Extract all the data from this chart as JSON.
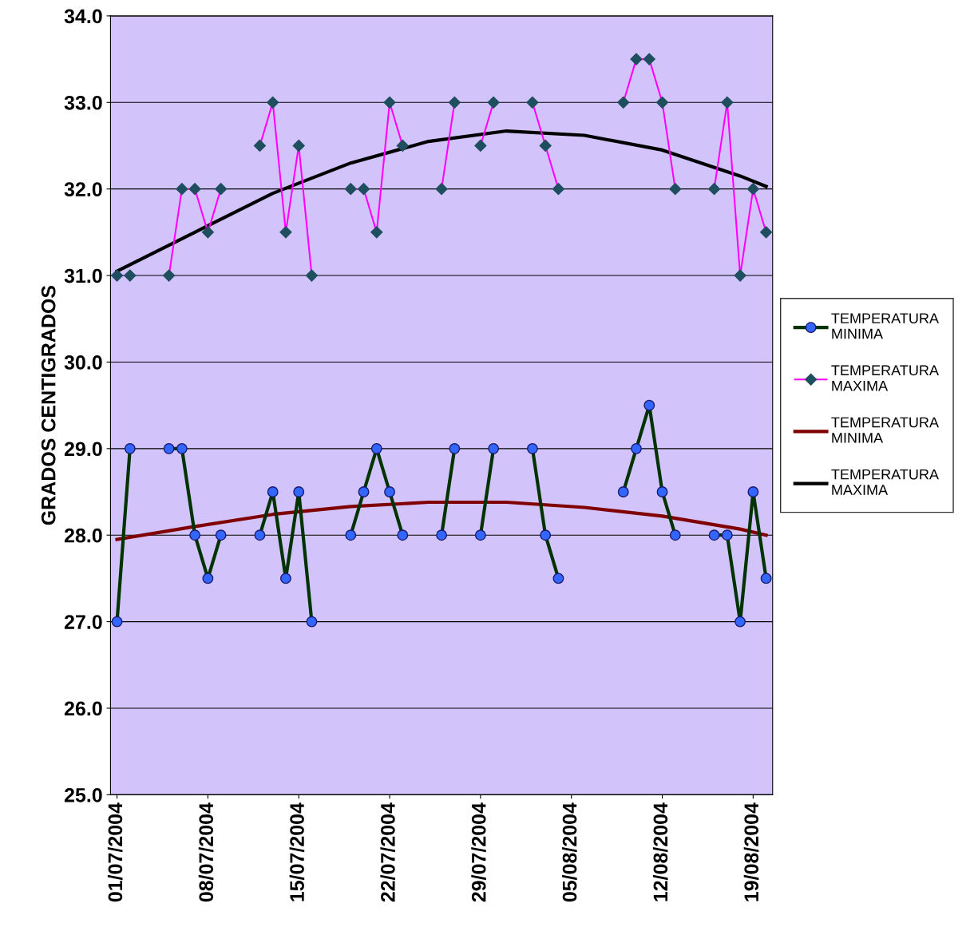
{
  "chart_data": {
    "type": "line",
    "ylabel": "GRADOS CENTIGRADOS",
    "x": [
      "2004-07-01",
      "2004-07-02",
      "2004-07-03",
      "2004-07-04",
      "2004-07-05",
      "2004-07-06",
      "2004-07-07",
      "2004-07-08",
      "2004-07-09",
      "2004-07-10",
      "2004-07-11",
      "2004-07-12",
      "2004-07-13",
      "2004-07-14",
      "2004-07-15",
      "2004-07-16",
      "2004-07-17",
      "2004-07-18",
      "2004-07-19",
      "2004-07-20",
      "2004-07-21",
      "2004-07-22",
      "2004-07-23",
      "2004-07-24",
      "2004-07-25",
      "2004-07-26",
      "2004-07-27",
      "2004-07-28",
      "2004-07-29",
      "2004-07-30",
      "2004-07-31",
      "2004-08-01",
      "2004-08-02",
      "2004-08-03",
      "2004-08-04",
      "2004-08-05",
      "2004-08-06",
      "2004-08-07",
      "2004-08-08",
      "2004-08-09",
      "2004-08-10",
      "2004-08-11",
      "2004-08-12",
      "2004-08-13",
      "2004-08-14",
      "2004-08-15",
      "2004-08-16",
      "2004-08-17",
      "2004-08-18",
      "2004-08-19",
      "2004-08-20"
    ],
    "series": [
      {
        "name": "TEMPERATURA MINIMA",
        "color": "#003300",
        "marker": "circle",
        "values": [
          27,
          29,
          null,
          null,
          29,
          29,
          28,
          27.5,
          28,
          null,
          null,
          28,
          28.5,
          27.5,
          28.5,
          27,
          null,
          null,
          28,
          28.5,
          29,
          28.5,
          28,
          null,
          null,
          28,
          29,
          null,
          28,
          29,
          null,
          null,
          29,
          28,
          27.5,
          null,
          null,
          null,
          null,
          28.5,
          29,
          29.5,
          28.5,
          28,
          null,
          null,
          28,
          28,
          27,
          28.5,
          27.5
        ]
      },
      {
        "name": "TEMPERATURA MAXIMA",
        "color": "#ff00ff",
        "marker": "diamond",
        "values": [
          31,
          31,
          null,
          null,
          31,
          32,
          32,
          31.5,
          32,
          null,
          null,
          32.5,
          33,
          31.5,
          32.5,
          31,
          null,
          null,
          32,
          32,
          31.5,
          33,
          32.5,
          null,
          null,
          32,
          33,
          null,
          32.5,
          33,
          null,
          null,
          33,
          32.5,
          32,
          null,
          null,
          null,
          null,
          33,
          33.5,
          33.5,
          33,
          32,
          null,
          null,
          32,
          33,
          31,
          32,
          31.5
        ]
      },
      {
        "name": "TEMPERATURA MINIMA",
        "color": "#800000",
        "marker": "none",
        "x": [
          "2004-07-01",
          "2004-07-07",
          "2004-07-13",
          "2004-07-19",
          "2004-07-25",
          "2004-07-31",
          "2004-08-06",
          "2004-08-12",
          "2004-08-18",
          "2004-08-20"
        ],
        "values": [
          27.95,
          28.1,
          28.24,
          28.33,
          28.38,
          28.38,
          28.32,
          28.22,
          28.07,
          28.0
        ]
      },
      {
        "name": "TEMPERATURA MAXIMA",
        "color": "#000000",
        "marker": "none",
        "x": [
          "2004-07-01",
          "2004-07-07",
          "2004-07-13",
          "2004-07-19",
          "2004-07-25",
          "2004-07-31",
          "2004-08-06",
          "2004-08-12",
          "2004-08-18",
          "2004-08-20"
        ],
        "values": [
          31.05,
          31.5,
          31.95,
          32.3,
          32.55,
          32.67,
          32.62,
          32.45,
          32.15,
          32.03
        ]
      }
    ],
    "xlim": [
      "2004-06-30T12:00",
      "2004-08-20T12:00"
    ],
    "xticks": [
      {
        "value": "2004-07-01",
        "label": "01/07/2004"
      },
      {
        "value": "2004-07-08",
        "label": "08/07/2004"
      },
      {
        "value": "2004-07-15",
        "label": "15/07/2004"
      },
      {
        "value": "2004-07-22",
        "label": "22/07/2004"
      },
      {
        "value": "2004-07-29",
        "label": "29/07/2004"
      },
      {
        "value": "2004-08-05",
        "label": "05/08/2004"
      },
      {
        "value": "2004-08-12",
        "label": "12/08/2004"
      },
      {
        "value": "2004-08-19",
        "label": "19/08/2004"
      }
    ],
    "ylim": [
      25,
      34
    ],
    "yticks": [
      {
        "value": 25,
        "label": "25.0"
      },
      {
        "value": 26,
        "label": "26.0"
      },
      {
        "value": 27,
        "label": "27.0"
      },
      {
        "value": 28,
        "label": "28.0"
      },
      {
        "value": 29,
        "label": "29.0"
      },
      {
        "value": 30,
        "label": "30.0"
      },
      {
        "value": 31,
        "label": "31.0"
      },
      {
        "value": 32,
        "label": "32.0"
      },
      {
        "value": 33,
        "label": "33.0"
      },
      {
        "value": 34,
        "label": "34.0"
      }
    ],
    "grid": "y",
    "legend": "right"
  }
}
